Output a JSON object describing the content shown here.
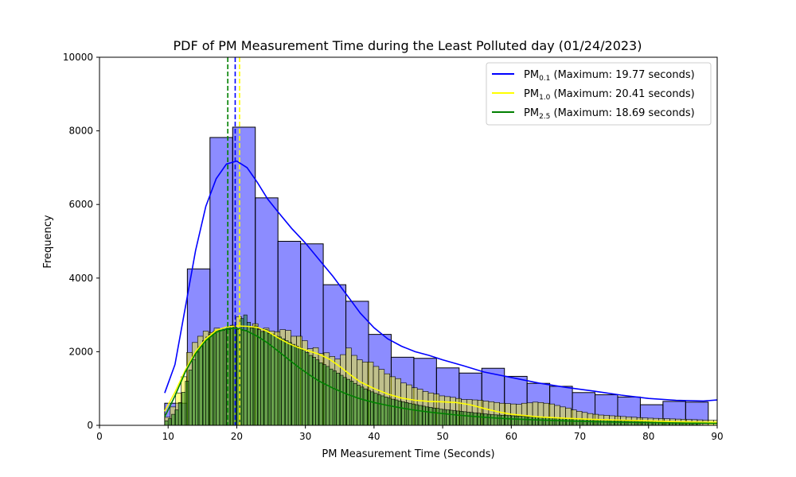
{
  "chart_data": {
    "type": "bar",
    "title": "PDF of PM Measurement Time during the Least Polluted day (01/24/2023)",
    "xlabel": "PM Measurement Time (Seconds)",
    "ylabel": "Frequency",
    "xlim": [
      0,
      90
    ],
    "ylim": [
      0,
      10000
    ],
    "xticks": [
      0,
      10,
      20,
      30,
      40,
      50,
      60,
      70,
      80,
      90
    ],
    "yticks": [
      0,
      2000,
      4000,
      6000,
      8000,
      10000
    ],
    "grid": false,
    "legend_position": "top-right",
    "series": [
      {
        "name": "PM0.1",
        "legend": {
          "base": "PM",
          "sub": "0.1",
          "suffix": " (Maximum: 19.77 seconds)"
        },
        "color": "#0000ff",
        "maximum": 19.77,
        "bin_width": 3.3,
        "bin_start": 9.5,
        "values": [
          600,
          4250,
          7820,
          8100,
          6180,
          5000,
          4930,
          3820,
          3370,
          2470,
          1850,
          1820,
          1560,
          1420,
          1550,
          1330,
          1140,
          1060,
          890,
          830,
          770,
          560,
          650,
          630
        ],
        "kde_x": [
          9.5,
          11,
          12.5,
          14,
          15.5,
          17,
          18.5,
          20,
          21.5,
          23,
          24.5,
          26,
          28,
          30,
          32,
          34,
          36,
          38,
          40,
          42,
          44,
          46,
          48,
          50,
          53,
          56,
          60,
          64,
          68,
          72,
          76,
          80,
          84,
          88,
          90
        ],
        "kde_y": [
          880,
          1650,
          3200,
          4750,
          5950,
          6700,
          7100,
          7180,
          7000,
          6600,
          6150,
          5800,
          5350,
          4950,
          4500,
          4050,
          3550,
          3050,
          2650,
          2350,
          2150,
          2000,
          1900,
          1780,
          1620,
          1450,
          1300,
          1150,
          1030,
          930,
          820,
          730,
          680,
          660,
          690
        ]
      },
      {
        "name": "PM1.0",
        "legend": {
          "base": "PM",
          "sub": "1.0",
          "suffix": " (Maximum: 20.41 seconds)"
        },
        "color": "#ffff00",
        "maximum": 20.41,
        "bin_width": 0.8,
        "bin_start": 9.5,
        "values": [
          220,
          500,
          880,
          1320,
          1980,
          2250,
          2420,
          2560,
          2520,
          2640,
          2580,
          2600,
          2720,
          2950,
          2580,
          2680,
          2760,
          2620,
          2640,
          2560,
          2540,
          2600,
          2580,
          2420,
          2420,
          2300,
          2080,
          2110,
          1950,
          1970,
          1870,
          1800,
          1920,
          2100,
          1900,
          1780,
          1720,
          1720,
          1600,
          1520,
          1400,
          1320,
          1270,
          1150,
          1100,
          1020,
          980,
          920,
          880,
          850,
          800,
          780,
          760,
          730,
          700,
          700,
          690,
          680,
          660,
          640,
          620,
          600,
          590,
          580,
          570,
          600,
          610,
          630,
          620,
          600,
          580,
          540,
          500,
          470,
          420,
          380,
          350,
          320,
          300,
          280,
          270,
          260,
          250,
          240,
          230,
          220,
          210,
          200,
          195,
          190,
          185,
          180,
          175,
          170,
          165,
          160,
          155,
          150,
          145,
          140,
          138,
          135,
          132,
          130
        ],
        "kde_x": [
          9.5,
          11,
          12.5,
          14,
          15.5,
          17,
          18.5,
          20,
          21.5,
          23,
          24.5,
          26,
          27.5,
          29,
          30.5,
          32,
          33.5,
          35,
          36.5,
          38,
          40,
          42,
          44,
          46,
          48,
          50,
          52,
          54,
          56,
          58,
          60,
          64,
          68,
          72,
          76,
          80,
          84,
          88,
          90
        ],
        "kde_y": [
          380,
          900,
          1500,
          2000,
          2350,
          2580,
          2670,
          2700,
          2690,
          2660,
          2550,
          2380,
          2230,
          2110,
          2020,
          1930,
          1800,
          1600,
          1380,
          1180,
          1000,
          850,
          740,
          680,
          650,
          640,
          620,
          560,
          460,
          370,
          300,
          230,
          190,
          160,
          140,
          120,
          100,
          85,
          80
        ]
      },
      {
        "name": "PM2.5",
        "legend": {
          "base": "PM",
          "sub": "2.5",
          "suffix": " (Maximum: 18.69 seconds)"
        },
        "color": "#008000",
        "maximum": 18.69,
        "bin_width": 0.5,
        "bin_start": 9.5,
        "values": [
          120,
          180,
          300,
          420,
          620,
          900,
          1200,
          1500,
          1780,
          2000,
          2150,
          2300,
          2400,
          2480,
          2550,
          2580,
          2620,
          2600,
          2640,
          2700,
          2660,
          2600,
          2900,
          3000,
          2800,
          2650,
          2700,
          2600,
          2550,
          2600,
          2500,
          2480,
          2420,
          2400,
          2350,
          2300,
          2250,
          2200,
          2150,
          2100,
          2050,
          1980,
          1900,
          1850,
          1780,
          1700,
          1650,
          1600,
          1530,
          1480,
          1420,
          1360,
          1300,
          1250,
          1200,
          1140,
          1090,
          1040,
          990,
          950,
          910,
          870,
          830,
          800,
          770,
          740,
          710,
          690,
          660,
          640,
          620,
          600,
          580,
          560,
          540,
          520,
          500,
          490,
          470,
          460,
          440,
          430,
          420,
          410,
          400,
          390,
          380,
          370,
          360,
          350,
          340,
          330,
          320,
          310,
          300,
          290,
          285,
          280,
          275,
          270,
          265,
          260,
          255,
          250,
          245,
          240,
          235,
          230,
          225,
          220,
          215,
          210,
          205,
          200,
          195,
          190,
          186,
          182,
          178,
          174,
          170,
          166,
          162,
          158,
          154,
          150,
          147,
          144,
          141,
          138,
          135,
          132,
          129,
          126,
          123,
          120,
          118,
          116,
          114,
          112,
          110,
          108,
          106,
          104,
          102,
          100,
          98,
          96,
          94,
          92,
          90,
          88,
          86,
          84,
          82,
          80
        ],
        "kde_x": [
          9.5,
          11,
          12.5,
          14,
          15.5,
          17,
          18.5,
          20,
          21.5,
          23,
          24.5,
          26,
          27.5,
          29,
          30.5,
          32,
          34,
          36,
          38,
          40,
          42,
          44,
          46,
          48,
          50,
          52,
          54,
          56,
          58,
          60,
          64,
          68,
          72,
          76,
          80,
          84,
          88,
          90
        ],
        "kde_y": [
          230,
          800,
          1450,
          1950,
          2300,
          2530,
          2620,
          2640,
          2560,
          2420,
          2240,
          2020,
          1800,
          1580,
          1380,
          1200,
          1010,
          850,
          720,
          620,
          540,
          470,
          410,
          360,
          320,
          280,
          250,
          220,
          195,
          175,
          145,
          120,
          100,
          85,
          75,
          65,
          58,
          52,
          50
        ]
      }
    ]
  }
}
